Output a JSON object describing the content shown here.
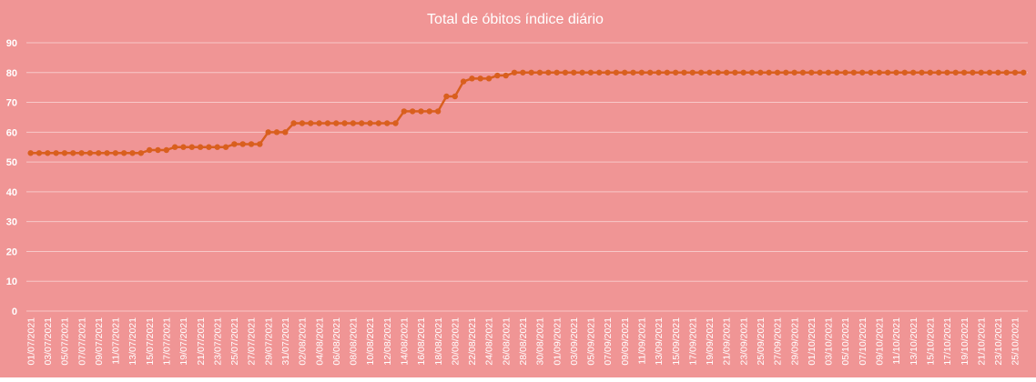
{
  "chart_data": {
    "type": "line",
    "title": "Total de óbitos índice diário",
    "xlabel": "",
    "ylabel": "",
    "ylim": [
      0,
      90
    ],
    "yticks": [
      0,
      10,
      20,
      30,
      40,
      50,
      60,
      70,
      80,
      90
    ],
    "grid": true,
    "legend": "none",
    "x": [
      "01/07/2021",
      "02/07/2021",
      "03/07/2021",
      "04/07/2021",
      "05/07/2021",
      "06/07/2021",
      "07/07/2021",
      "08/07/2021",
      "09/07/2021",
      "10/07/2021",
      "11/07/2021",
      "12/07/2021",
      "13/07/2021",
      "14/07/2021",
      "15/07/2021",
      "16/07/2021",
      "17/07/2021",
      "18/07/2021",
      "19/07/2021",
      "20/07/2021",
      "21/07/2021",
      "22/07/2021",
      "23/07/2021",
      "24/07/2021",
      "25/07/2021",
      "26/07/2021",
      "27/07/2021",
      "28/07/2021",
      "29/07/2021",
      "30/07/2021",
      "31/07/2021",
      "01/08/2021",
      "02/08/2021",
      "03/08/2021",
      "04/08/2021",
      "05/08/2021",
      "06/08/2021",
      "07/08/2021",
      "08/08/2021",
      "09/08/2021",
      "10/08/2021",
      "11/08/2021",
      "12/08/2021",
      "13/08/2021",
      "14/08/2021",
      "15/08/2021",
      "16/08/2021",
      "17/08/2021",
      "18/08/2021",
      "19/08/2021",
      "20/08/2021",
      "21/08/2021",
      "22/08/2021",
      "23/08/2021",
      "24/08/2021",
      "25/08/2021",
      "26/08/2021",
      "27/08/2021",
      "28/08/2021",
      "29/08/2021",
      "30/08/2021",
      "31/08/2021",
      "01/09/2021",
      "02/09/2021",
      "03/09/2021",
      "04/09/2021",
      "05/09/2021",
      "06/09/2021",
      "07/09/2021",
      "08/09/2021",
      "09/09/2021",
      "10/09/2021",
      "11/09/2021",
      "12/09/2021",
      "13/09/2021",
      "14/09/2021",
      "15/09/2021",
      "16/09/2021",
      "17/09/2021",
      "18/09/2021",
      "19/09/2021",
      "20/09/2021",
      "21/09/2021",
      "22/09/2021",
      "23/09/2021",
      "24/09/2021",
      "25/09/2021",
      "26/09/2021",
      "27/09/2021",
      "28/09/2021",
      "29/09/2021",
      "30/09/2021",
      "01/10/2021",
      "02/10/2021",
      "03/10/2021",
      "04/10/2021",
      "05/10/2021",
      "06/10/2021",
      "07/10/2021",
      "08/10/2021",
      "09/10/2021",
      "10/10/2021",
      "11/10/2021",
      "12/10/2021",
      "13/10/2021",
      "14/10/2021",
      "15/10/2021",
      "16/10/2021",
      "17/10/2021",
      "18/10/2021",
      "19/10/2021",
      "20/10/2021",
      "21/10/2021",
      "22/10/2021",
      "23/10/2021",
      "24/10/2021",
      "25/10/2021",
      "26/10/2021"
    ],
    "series": [
      {
        "name": "",
        "color": "#d95f1e",
        "values": [
          53,
          53,
          53,
          53,
          53,
          53,
          53,
          53,
          53,
          53,
          53,
          53,
          53,
          53,
          54,
          54,
          54,
          55,
          55,
          55,
          55,
          55,
          55,
          55,
          56,
          56,
          56,
          56,
          60,
          60,
          60,
          63,
          63,
          63,
          63,
          63,
          63,
          63,
          63,
          63,
          63,
          63,
          63,
          63,
          67,
          67,
          67,
          67,
          67,
          72,
          72,
          77,
          78,
          78,
          78,
          79,
          79,
          80,
          80,
          80,
          80,
          80,
          80,
          80,
          80,
          80,
          80,
          80,
          80,
          80,
          80,
          80,
          80,
          80,
          80,
          80,
          80,
          80,
          80,
          80,
          80,
          80,
          80,
          80,
          80,
          80,
          80,
          80,
          80,
          80,
          80,
          80,
          80,
          80,
          80,
          80,
          80,
          80,
          80,
          80,
          80,
          80,
          80,
          80,
          80,
          80,
          80,
          80,
          80,
          80,
          80,
          80,
          80,
          80,
          80,
          80,
          80,
          80
        ]
      }
    ],
    "colors": {
      "background": "#f09595",
      "line": "#d95f1e",
      "gridline": "#f8c8c8",
      "text": "#ffffff"
    }
  }
}
